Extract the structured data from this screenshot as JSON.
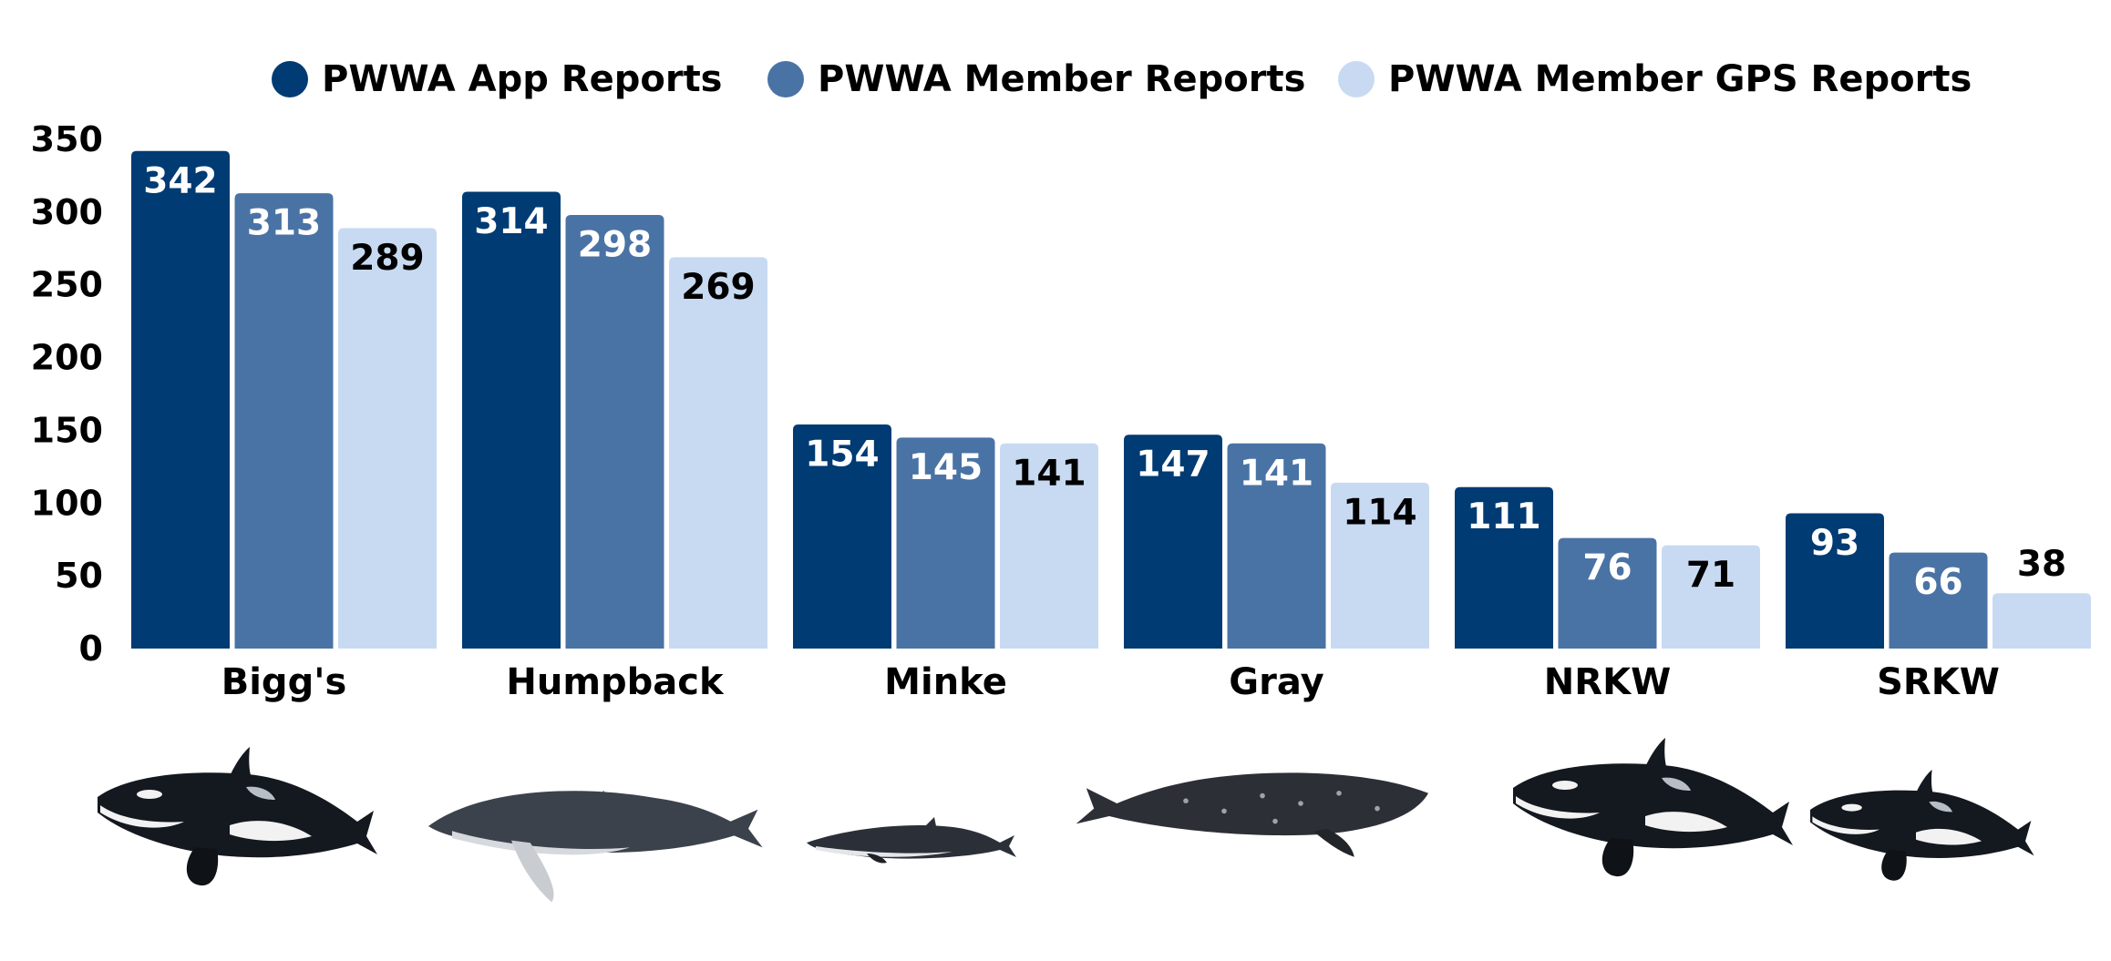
{
  "chart_data": {
    "type": "bar",
    "categories": [
      "Bigg's",
      "Humpback",
      "Minke",
      "Gray",
      "NRKW",
      "SRKW"
    ],
    "series": [
      {
        "name": "PWWA App Reports",
        "values": [
          342,
          314,
          154,
          147,
          111,
          93
        ],
        "color": "#003b73",
        "label_color": "#ffffff"
      },
      {
        "name": "PWWA Member Reports",
        "values": [
          313,
          298,
          145,
          141,
          76,
          66
        ],
        "color": "#4a73a5",
        "label_color": "#ffffff"
      },
      {
        "name": "PWWA Member GPS Reports",
        "values": [
          289,
          269,
          141,
          114,
          71,
          38
        ],
        "color": "#c8daf2",
        "label_color": "#000000"
      }
    ],
    "yticks": [
      0,
      50,
      100,
      150,
      200,
      250,
      300,
      350
    ],
    "ylim": [
      0,
      350
    ],
    "legend_position": "top",
    "grid": false,
    "illustrations": [
      "orca-icon",
      "humpback-whale-icon",
      "minke-whale-icon",
      "gray-whale-icon",
      "orca-icon",
      "orca-icon"
    ]
  }
}
